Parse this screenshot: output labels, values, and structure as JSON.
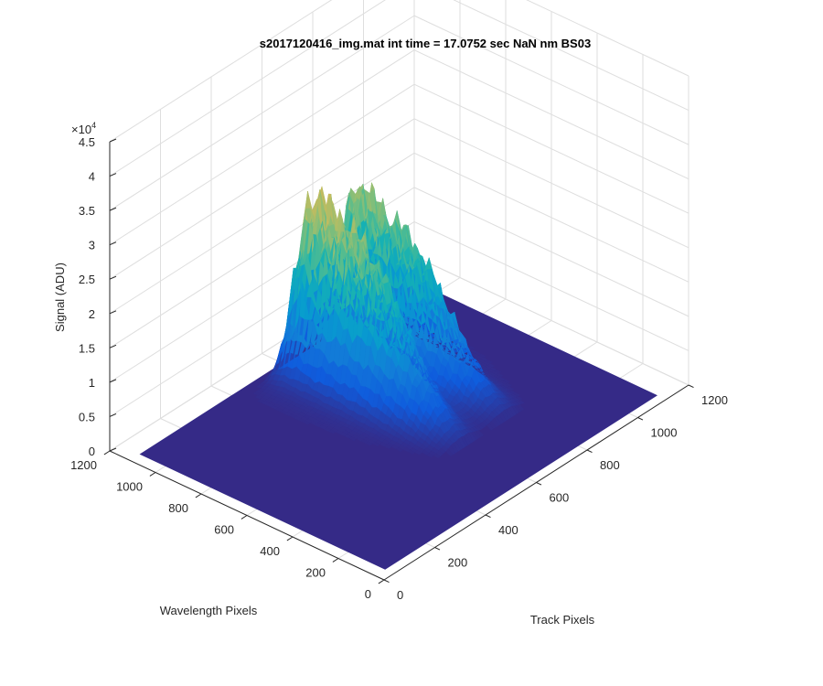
{
  "chart_data": {
    "type": "surface",
    "title": "s2017120416_img.mat int time = 17.0752 sec  NaN nm BS03",
    "xlabel": "Track Pixels",
    "ylabel": "Wavelength Pixels",
    "zlabel": "Signal (ADU)",
    "exponent_label": "×10",
    "exponent_power": "4",
    "xlim": [
      0,
      1200
    ],
    "ylim": [
      0,
      1200
    ],
    "zlim": [
      0,
      45000
    ],
    "x_ticks": [
      "0",
      "200",
      "400",
      "600",
      "800",
      "1000",
      "1200"
    ],
    "y_ticks": [
      "0",
      "200",
      "400",
      "600",
      "800",
      "1000",
      "1200"
    ],
    "z_ticks": [
      "0",
      "0.5",
      "1",
      "1.5",
      "2",
      "2.5",
      "3",
      "3.5",
      "4",
      "4.5"
    ],
    "grid": true,
    "colormap": "parula",
    "peaks": [
      {
        "track_pixel": 610,
        "wavelength_pixel": 780,
        "signal": 35000
      },
      {
        "track_pixel": 780,
        "wavelength_pixel": 840,
        "signal": 32000
      }
    ]
  },
  "colors": {
    "surface_base": "#352a87",
    "axis": "#262626",
    "grid": "#dedede"
  }
}
